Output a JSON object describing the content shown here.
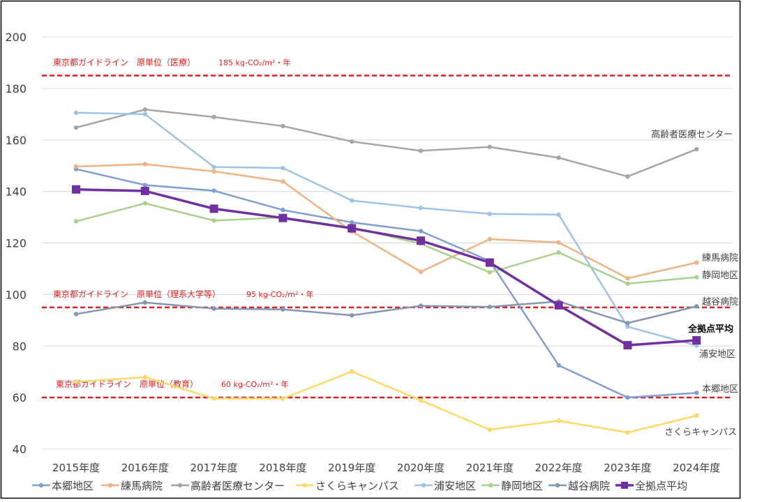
{
  "chart_data": {
    "type": "line",
    "categories": [
      "2015年度",
      "2016年度",
      "2017年度",
      "2018年度",
      "2019年度",
      "2020年度",
      "2021年度",
      "2022年度",
      "2023年度",
      "2024年度"
    ],
    "ylim": [
      40,
      200
    ],
    "yticks": [
      40,
      60,
      80,
      100,
      120,
      140,
      160,
      180,
      200
    ],
    "grid": true,
    "legend_position": "bottom",
    "series": [
      {
        "name": "本郷地区",
        "color": "#7f9fd0",
        "values": [
          148.7,
          142.5,
          140.3,
          132.8,
          128.0,
          124.6,
          113.0,
          72.5,
          60.0,
          61.8
        ]
      },
      {
        "name": "練馬病院",
        "color": "#f0b283",
        "values": [
          149.7,
          150.6,
          147.8,
          143.9,
          124.5,
          108.8,
          121.5,
          120.2,
          106.3,
          112.4
        ]
      },
      {
        "name": "高齢者医療センター",
        "color": "#a5a5a5",
        "values": [
          164.8,
          171.8,
          168.9,
          165.4,
          159.4,
          155.8,
          157.3,
          153.1,
          145.8,
          156.4
        ]
      },
      {
        "name": "さくらキャンパス",
        "color": "#ffd966",
        "values": [
          66.1,
          67.9,
          59.6,
          59.6,
          70.1,
          58.9,
          47.5,
          51.0,
          46.4,
          53.0
        ]
      },
      {
        "name": "浦安地区",
        "color": "#9dc3e6",
        "values": [
          170.6,
          170.0,
          149.5,
          149.1,
          136.5,
          133.6,
          131.3,
          131.0,
          87.5,
          80.2
        ]
      },
      {
        "name": "静岡地区",
        "color": "#a9d18e",
        "values": [
          128.4,
          135.4,
          128.7,
          129.9,
          126.0,
          119.7,
          108.6,
          116.3,
          104.2,
          106.7
        ]
      },
      {
        "name": "越谷病院",
        "color": "#8497b0",
        "values": [
          92.4,
          96.9,
          94.5,
          94.2,
          91.9,
          95.6,
          95.2,
          97.3,
          88.9,
          95.4
        ]
      },
      {
        "name": "全拠点平均",
        "color": "#7030a0",
        "values": [
          140.8,
          140.2,
          133.3,
          129.7,
          125.7,
          120.9,
          112.4,
          95.8,
          80.3,
          82.2
        ]
      }
    ],
    "reference_lines": [
      {
        "value": 185,
        "label": "東京都ガイドライン　原単位（医療）",
        "value_label": "185",
        "unit": "kg-CO₂/m²・年"
      },
      {
        "value": 95,
        "label": "東京都ガイドライン　原単位（理系大学等）",
        "value_label": "95",
        "unit": "kg-CO₂/m²・年"
      },
      {
        "value": 60,
        "label": "東京都ガイドライン　原単位（教育）",
        "value_label": "60",
        "unit": "kg-CO₂/m²・年"
      }
    ],
    "end_labels": [
      {
        "series": "高齢者医療センター",
        "text": "高齢者医療センター"
      },
      {
        "series": "練馬病院",
        "text": "練馬病院"
      },
      {
        "series": "静岡地区",
        "text": "静岡地区"
      },
      {
        "series": "越谷病院",
        "text": "越谷病院"
      },
      {
        "series": "全拠点平均",
        "text": "全拠点平均",
        "bold": true
      },
      {
        "series": "浦安地区",
        "text": "浦安地区"
      },
      {
        "series": "本郷地区",
        "text": "本郷地区"
      },
      {
        "series": "さくらキャンパス",
        "text": "さくらキャンパス"
      }
    ],
    "reference_color": "#e02020"
  }
}
